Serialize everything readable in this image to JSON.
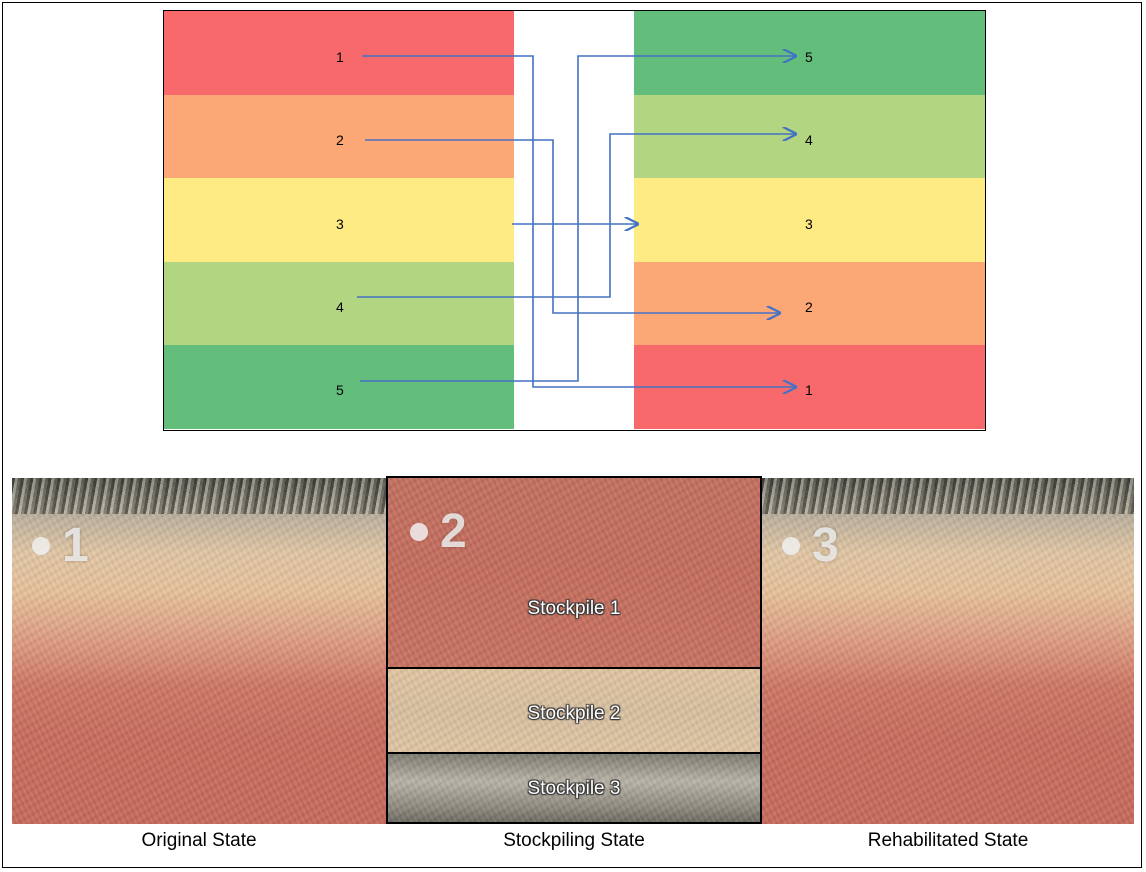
{
  "colors": {
    "red": "#f8696b",
    "orange": "#fba776",
    "yellow": "#ffeb84",
    "light_green": "#b1d580",
    "green": "#63be7b",
    "arrow": "#4472c4"
  },
  "diagram": {
    "left_layers": [
      {
        "label": "1",
        "color": "#f8696b"
      },
      {
        "label": "2",
        "color": "#fba776"
      },
      {
        "label": "3",
        "color": "#ffeb84"
      },
      {
        "label": "4",
        "color": "#b1d580"
      },
      {
        "label": "5",
        "color": "#63be7b"
      }
    ],
    "right_layers": [
      {
        "label": "5",
        "color": "#63be7b"
      },
      {
        "label": "4",
        "color": "#b1d580"
      },
      {
        "label": "3",
        "color": "#ffeb84"
      },
      {
        "label": "2",
        "color": "#fba776"
      },
      {
        "label": "1",
        "color": "#f8696b"
      }
    ]
  },
  "panels": {
    "original": {
      "number": "1",
      "caption": "Original State"
    },
    "stockpiling": {
      "number": "2",
      "caption": "Stockpiling State",
      "stockpiles": [
        "Stockpile 1",
        "Stockpile 2",
        "Stockpile 3"
      ]
    },
    "rehabilitated": {
      "number": "3",
      "caption": "Rehabilitated State"
    }
  }
}
